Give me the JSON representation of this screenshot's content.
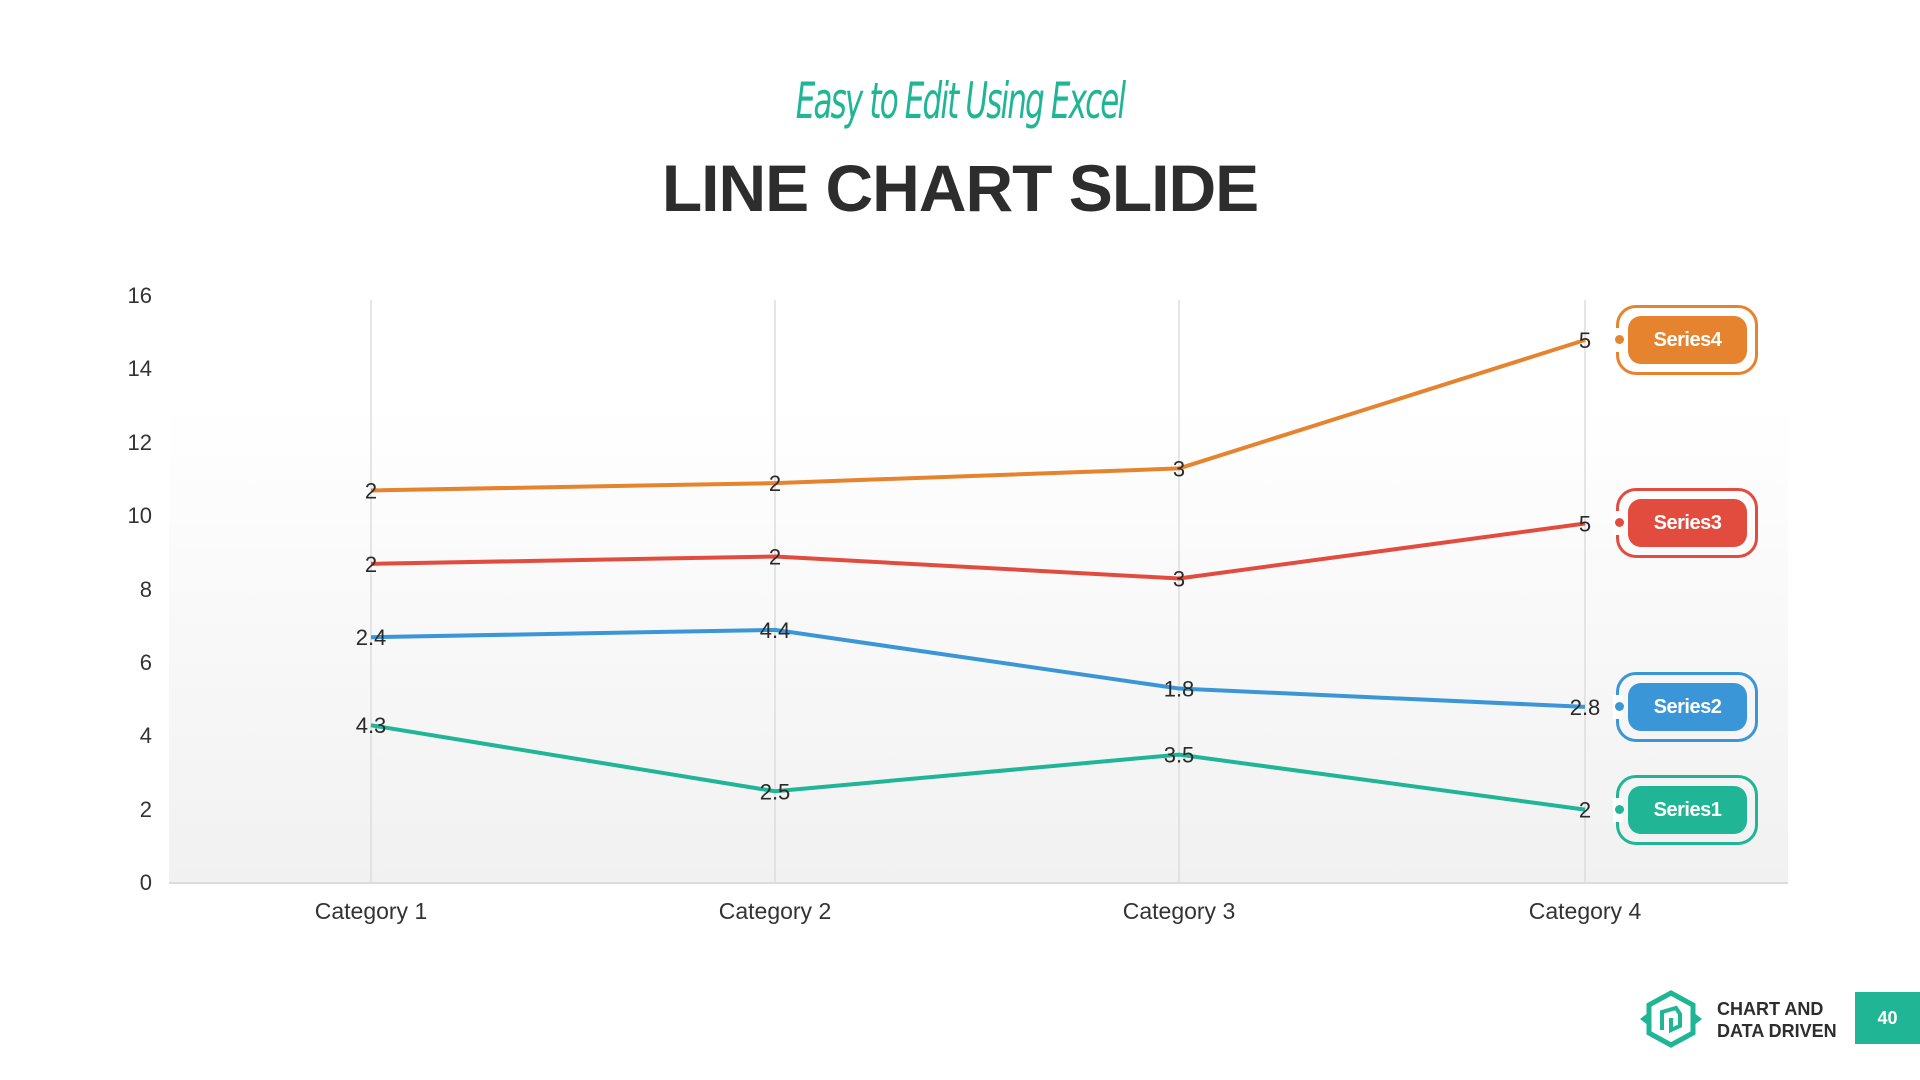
{
  "header": {
    "subtitle": "Easy to Edit Using Excel",
    "title": "LINE CHART SLIDE"
  },
  "footer": {
    "brand_line1": "CHART AND",
    "brand_line2": "DATA DRIVEN",
    "page_number": "40"
  },
  "colors": {
    "accent": "#1fb595",
    "series1": "#1fb595",
    "series2": "#3a96d6",
    "series3": "#e24c3f",
    "series4": "#e5832e",
    "text": "#2d2d2d"
  },
  "chart_data": {
    "type": "line",
    "stacked": true,
    "title": "LINE CHART SLIDE",
    "subtitle": "Easy to Edit Using Excel",
    "xlabel": "",
    "ylabel": "",
    "categories": [
      "Category 1",
      "Category 2",
      "Category 3",
      "Category 4"
    ],
    "yticks": [
      "0",
      "2",
      "4",
      "6",
      "8",
      "10",
      "12",
      "14",
      "16"
    ],
    "ylim": [
      0,
      16
    ],
    "grid": "vertical category lines",
    "legend_position": "right",
    "series": [
      {
        "name": "Series1",
        "values": [
          4.3,
          2.5,
          3.5,
          2
        ],
        "labels": [
          "4.3",
          "2.5",
          "3.5",
          "2"
        ],
        "color": "#1fb595"
      },
      {
        "name": "Series2",
        "values": [
          2.4,
          4.4,
          1.8,
          2.8
        ],
        "labels": [
          "2.4",
          "4.4",
          "1.8",
          "2.8"
        ],
        "color": "#3a96d6"
      },
      {
        "name": "Series3",
        "values": [
          2,
          2,
          3,
          5
        ],
        "labels": [
          "2",
          "2",
          "3",
          "5"
        ],
        "color": "#e24c3f"
      },
      {
        "name": "Series4",
        "values": [
          2,
          2,
          3,
          5
        ],
        "labels": [
          "2",
          "2",
          "3",
          "5"
        ],
        "color": "#e5832e"
      }
    ]
  }
}
